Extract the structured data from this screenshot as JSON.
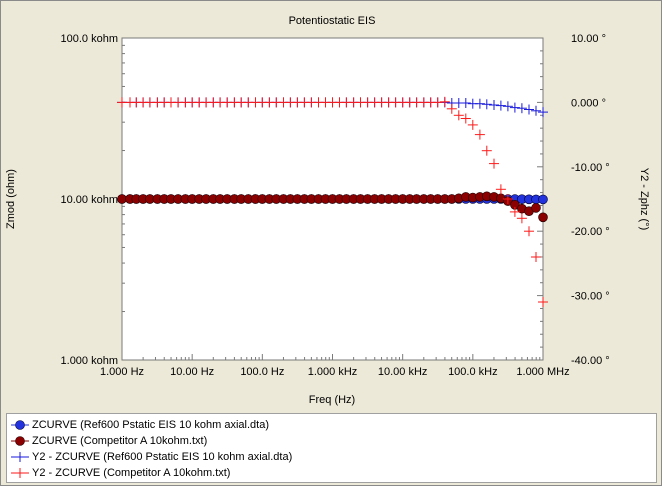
{
  "chart_data": {
    "type": "scatter",
    "title": "Potentiostatic EIS",
    "xlabel": "Freq (Hz)",
    "ylabel": "Zmod (ohm)",
    "y2label": "Y2 - Zphz (°)",
    "x_scale": "log",
    "y_scale": "log",
    "xlim": [
      1,
      1000000
    ],
    "ylim": [
      1000,
      100000
    ],
    "y2lim": [
      -40,
      10
    ],
    "x_ticks": [
      {
        "value": 1,
        "label": "1.000 Hz"
      },
      {
        "value": 10,
        "label": "10.00 Hz"
      },
      {
        "value": 100,
        "label": "100.0 Hz"
      },
      {
        "value": 1000,
        "label": "1.000 kHz"
      },
      {
        "value": 10000,
        "label": "10.00 kHz"
      },
      {
        "value": 100000,
        "label": "100.0 kHz"
      },
      {
        "value": 1000000,
        "label": "1.000 MHz"
      }
    ],
    "y_ticks": [
      {
        "value": 1000,
        "label": "1.000 kohm"
      },
      {
        "value": 10000,
        "label": "10.00 kohm"
      },
      {
        "value": 100000,
        "label": "100.0 kohm"
      }
    ],
    "y2_ticks": [
      {
        "value": 10,
        "label": "10.00 °"
      },
      {
        "value": 0,
        "label": "0.000 °"
      },
      {
        "value": -10,
        "label": "-10.00 °"
      },
      {
        "value": -20,
        "label": "-20.00 °"
      },
      {
        "value": -30,
        "label": "-30.00 °"
      },
      {
        "value": -40,
        "label": "-40.00 °"
      }
    ],
    "grid": false,
    "legend_position": "bottom",
    "series": [
      {
        "name": "ZCURVE (Ref600 Pstatic EIS 10 kohm axial.dta)",
        "axis": "y",
        "marker": "circle",
        "color": "#2233dd",
        "points": [
          [
            1,
            10000
          ],
          [
            1.3,
            10000
          ],
          [
            1.6,
            10000
          ],
          [
            2,
            10000
          ],
          [
            2.5,
            10000
          ],
          [
            3.2,
            10000
          ],
          [
            4,
            10000
          ],
          [
            5,
            10000
          ],
          [
            6.3,
            10000
          ],
          [
            8,
            10000
          ],
          [
            10,
            10000
          ],
          [
            12.6,
            10000
          ],
          [
            15.8,
            10000
          ],
          [
            20,
            10000
          ],
          [
            25,
            10000
          ],
          [
            31.6,
            10000
          ],
          [
            40,
            10000
          ],
          [
            50,
            10000
          ],
          [
            63,
            10000
          ],
          [
            80,
            10000
          ],
          [
            100,
            10000
          ],
          [
            126,
            10000
          ],
          [
            158,
            10000
          ],
          [
            200,
            10000
          ],
          [
            251,
            10000
          ],
          [
            316,
            10000
          ],
          [
            398,
            10000
          ],
          [
            501,
            10000
          ],
          [
            631,
            10000
          ],
          [
            794,
            10000
          ],
          [
            1000,
            10000
          ],
          [
            1260,
            10000
          ],
          [
            1580,
            10000
          ],
          [
            2000,
            10000
          ],
          [
            2510,
            10000
          ],
          [
            3160,
            10000
          ],
          [
            3980,
            10000
          ],
          [
            5010,
            10000
          ],
          [
            6310,
            10000
          ],
          [
            7940,
            10000
          ],
          [
            10000,
            10000
          ],
          [
            12600,
            10000
          ],
          [
            15800,
            10000
          ],
          [
            20000,
            10000
          ],
          [
            25100,
            10000
          ],
          [
            31600,
            10000
          ],
          [
            39800,
            10000
          ],
          [
            50100,
            10000
          ],
          [
            63100,
            10000
          ],
          [
            79400,
            10000
          ],
          [
            100000,
            10000
          ],
          [
            126000,
            10000
          ],
          [
            158000,
            10000
          ],
          [
            200000,
            10000
          ],
          [
            251000,
            10000
          ],
          [
            316000,
            9980
          ],
          [
            398000,
            9980
          ],
          [
            501000,
            9970
          ],
          [
            631000,
            9960
          ],
          [
            794000,
            9950
          ],
          [
            1000000,
            9940
          ]
        ]
      },
      {
        "name": "ZCURVE (Competitor A 10kohm.txt)",
        "axis": "y",
        "marker": "circle",
        "color": "#8b0000",
        "points": [
          [
            1,
            10000
          ],
          [
            1.3,
            10000
          ],
          [
            1.6,
            10000
          ],
          [
            2,
            10000
          ],
          [
            2.5,
            10000
          ],
          [
            3.2,
            10000
          ],
          [
            4,
            10000
          ],
          [
            5,
            10000
          ],
          [
            6.3,
            10000
          ],
          [
            8,
            10000
          ],
          [
            10,
            10000
          ],
          [
            12.6,
            10000
          ],
          [
            15.8,
            10000
          ],
          [
            20,
            10000
          ],
          [
            25,
            10000
          ],
          [
            31.6,
            10000
          ],
          [
            40,
            10000
          ],
          [
            50,
            10000
          ],
          [
            63,
            10000
          ],
          [
            80,
            10000
          ],
          [
            100,
            10000
          ],
          [
            126,
            10000
          ],
          [
            158,
            10000
          ],
          [
            200,
            10000
          ],
          [
            251,
            10000
          ],
          [
            316,
            10000
          ],
          [
            398,
            10000
          ],
          [
            501,
            10000
          ],
          [
            631,
            10000
          ],
          [
            794,
            10000
          ],
          [
            1000,
            10000
          ],
          [
            1260,
            10000
          ],
          [
            1580,
            10000
          ],
          [
            2000,
            10000
          ],
          [
            2510,
            10000
          ],
          [
            3160,
            10000
          ],
          [
            3980,
            10000
          ],
          [
            5010,
            10000
          ],
          [
            6310,
            10000
          ],
          [
            7940,
            10000
          ],
          [
            10000,
            10000
          ],
          [
            12600,
            10000
          ],
          [
            15800,
            10000
          ],
          [
            20000,
            10000
          ],
          [
            25100,
            10000
          ],
          [
            31600,
            10000
          ],
          [
            39800,
            10000
          ],
          [
            50100,
            10000
          ],
          [
            63100,
            10100
          ],
          [
            79400,
            10300
          ],
          [
            100000,
            10200
          ],
          [
            126000,
            10300
          ],
          [
            158000,
            10400
          ],
          [
            200000,
            10300
          ],
          [
            251000,
            10100
          ],
          [
            316000,
            9700
          ],
          [
            398000,
            9200
          ],
          [
            501000,
            8700
          ],
          [
            631000,
            8400
          ],
          [
            794000,
            8800
          ],
          [
            1000000,
            7700
          ]
        ]
      },
      {
        "name": "Y2 - ZCURVE (Ref600 Pstatic EIS 10 kohm axial.dta)",
        "axis": "y2",
        "marker": "plus",
        "color": "#1a1adc",
        "points": [
          [
            1,
            0
          ],
          [
            1.3,
            0
          ],
          [
            1.6,
            0
          ],
          [
            2,
            0
          ],
          [
            2.5,
            0
          ],
          [
            3.2,
            0
          ],
          [
            4,
            0
          ],
          [
            5,
            0
          ],
          [
            6.3,
            0
          ],
          [
            8,
            0
          ],
          [
            10,
            0
          ],
          [
            12.6,
            0
          ],
          [
            15.8,
            0
          ],
          [
            20,
            0
          ],
          [
            25,
            0
          ],
          [
            31.6,
            0
          ],
          [
            40,
            0
          ],
          [
            50,
            0
          ],
          [
            63,
            0
          ],
          [
            80,
            0
          ],
          [
            100,
            0
          ],
          [
            126,
            0
          ],
          [
            158,
            0
          ],
          [
            200,
            0
          ],
          [
            251,
            0
          ],
          [
            316,
            0
          ],
          [
            398,
            0
          ],
          [
            501,
            0
          ],
          [
            631,
            0
          ],
          [
            794,
            0
          ],
          [
            1000,
            0
          ],
          [
            1260,
            0
          ],
          [
            1580,
            0
          ],
          [
            2000,
            0
          ],
          [
            2510,
            0
          ],
          [
            3160,
            0
          ],
          [
            3980,
            0
          ],
          [
            5010,
            0
          ],
          [
            6310,
            0
          ],
          [
            7940,
            0
          ],
          [
            10000,
            0
          ],
          [
            12600,
            0
          ],
          [
            15800,
            0
          ],
          [
            20000,
            0
          ],
          [
            25100,
            0
          ],
          [
            31600,
            0
          ],
          [
            39800,
            0
          ],
          [
            50100,
            -0.1
          ],
          [
            63100,
            -0.1
          ],
          [
            79400,
            -0.1
          ],
          [
            100000,
            -0.2
          ],
          [
            126000,
            -0.2
          ],
          [
            158000,
            -0.3
          ],
          [
            200000,
            -0.4
          ],
          [
            251000,
            -0.5
          ],
          [
            316000,
            -0.6
          ],
          [
            398000,
            -0.8
          ],
          [
            501000,
            -0.9
          ],
          [
            631000,
            -1.1
          ],
          [
            794000,
            -1.3
          ],
          [
            1000000,
            -1.5
          ]
        ]
      },
      {
        "name": "Y2 - ZCURVE (Competitor A 10kohm.txt)",
        "axis": "y2",
        "marker": "plus",
        "color": "#ff1a1a",
        "points": [
          [
            1,
            0
          ],
          [
            1.3,
            0
          ],
          [
            1.6,
            0
          ],
          [
            2,
            0
          ],
          [
            2.5,
            0
          ],
          [
            3.2,
            0
          ],
          [
            4,
            0
          ],
          [
            5,
            0
          ],
          [
            6.3,
            0
          ],
          [
            8,
            0
          ],
          [
            10,
            0
          ],
          [
            12.6,
            0
          ],
          [
            15.8,
            0
          ],
          [
            20,
            0
          ],
          [
            25,
            0
          ],
          [
            31.6,
            0
          ],
          [
            40,
            0
          ],
          [
            50,
            0
          ],
          [
            63,
            0
          ],
          [
            80,
            0
          ],
          [
            100,
            0
          ],
          [
            126,
            0
          ],
          [
            158,
            0
          ],
          [
            200,
            0
          ],
          [
            251,
            0
          ],
          [
            316,
            0
          ],
          [
            398,
            0
          ],
          [
            501,
            0
          ],
          [
            631,
            0
          ],
          [
            794,
            0
          ],
          [
            1000,
            0
          ],
          [
            1260,
            0
          ],
          [
            1580,
            0
          ],
          [
            2000,
            0
          ],
          [
            2510,
            0
          ],
          [
            3160,
            0
          ],
          [
            3980,
            0
          ],
          [
            5010,
            0
          ],
          [
            6310,
            0
          ],
          [
            7940,
            0
          ],
          [
            10000,
            0
          ],
          [
            12600,
            0
          ],
          [
            15800,
            0
          ],
          [
            20000,
            0
          ],
          [
            25100,
            0
          ],
          [
            31600,
            0
          ],
          [
            39800,
            0.1
          ],
          [
            50100,
            -1
          ],
          [
            63100,
            -2
          ],
          [
            79400,
            -2.5
          ],
          [
            100000,
            -3.5
          ],
          [
            126000,
            -5
          ],
          [
            158000,
            -7.5
          ],
          [
            200000,
            -9.5
          ],
          [
            251000,
            -13.5
          ],
          [
            316000,
            -15
          ],
          [
            398000,
            -17
          ],
          [
            501000,
            -18
          ],
          [
            631000,
            -20
          ],
          [
            794000,
            -24
          ],
          [
            1000000,
            -31
          ]
        ]
      }
    ]
  },
  "legend": {
    "items": [
      {
        "label": "ZCURVE (Ref600 Pstatic EIS 10 kohm axial.dta)",
        "marker": "circle",
        "color": "#2233dd"
      },
      {
        "label": "ZCURVE (Competitor A 10kohm.txt)",
        "marker": "circle",
        "color": "#8b0000"
      },
      {
        "label": "Y2 - ZCURVE (Ref600 Pstatic EIS 10 kohm axial.dta)",
        "marker": "plus",
        "color": "#1a1adc"
      },
      {
        "label": "Y2 - ZCURVE (Competitor A 10kohm.txt)",
        "marker": "plus",
        "color": "#ff1a1a"
      }
    ]
  }
}
